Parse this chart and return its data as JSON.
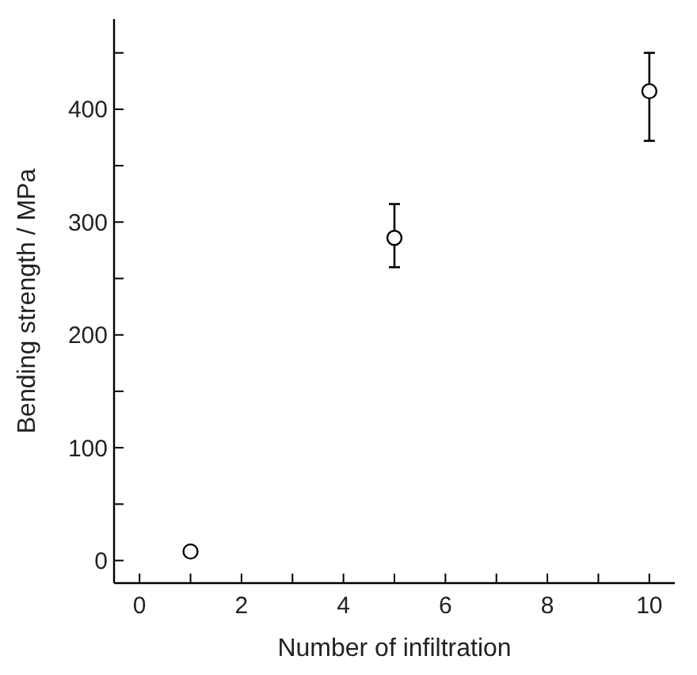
{
  "chart_data": {
    "type": "scatter",
    "xlabel": "Number of infiltration",
    "ylabel": "Bending strength / MPa",
    "x": [
      1,
      5,
      10
    ],
    "series": [
      {
        "color": "#000000",
        "values": [
          8,
          286,
          416
        ],
        "errors": [
          null,
          [
            260,
            316
          ],
          [
            372,
            450
          ]
        ]
      }
    ],
    "marker": "circle",
    "grid": false,
    "xlim": [
      -0.5,
      10.5
    ],
    "ylim": [
      -20,
      480
    ],
    "xticks": [
      0,
      {
        "value": 1,
        "label": null
      },
      2,
      {
        "value": 3,
        "label": null
      },
      4,
      {
        "value": 5,
        "label": null
      },
      6,
      {
        "value": 7,
        "label": null
      },
      8,
      {
        "value": 9,
        "label": null
      },
      10
    ],
    "yticks": [
      0,
      {
        "value": 50,
        "label": null
      },
      100,
      {
        "value": 150,
        "label": null
      },
      200,
      {
        "value": 250,
        "label": null
      },
      300,
      {
        "value": 350,
        "label": null
      },
      400,
      {
        "value": 450,
        "label": null
      }
    ]
  }
}
